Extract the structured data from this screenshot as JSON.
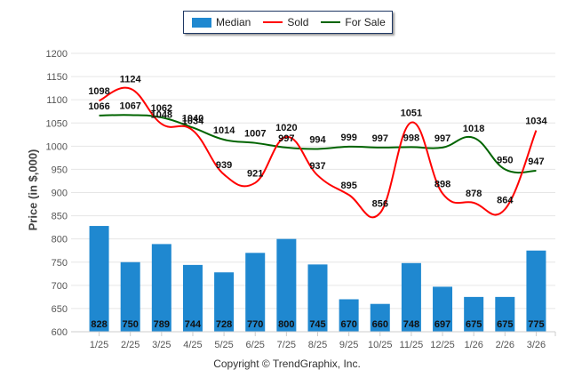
{
  "legend": {
    "median_label": "Median",
    "sold_label": "Sold",
    "forsale_label": "For Sale"
  },
  "copyright": "Copyright © TrendGraphix, Inc.",
  "colors": {
    "median": "#1f88d0",
    "sold": "#ff0000",
    "forsale": "#006400",
    "grid": "#e6e6e6"
  },
  "chart_data": {
    "type": "bar",
    "title": "",
    "xlabel": "",
    "ylabel": "Price (in $,000)",
    "ylim": [
      600,
      1200
    ],
    "yticks": [
      600,
      650,
      700,
      750,
      800,
      850,
      900,
      950,
      1000,
      1050,
      1100,
      1150,
      1200
    ],
    "grid": true,
    "legend_position": "top-center",
    "categories": [
      "1/25",
      "2/25",
      "3/25",
      "4/25",
      "5/25",
      "6/25",
      "7/25",
      "8/25",
      "9/25",
      "10/25",
      "11/25",
      "12/25",
      "1/26",
      "2/26",
      "3/26"
    ],
    "series": [
      {
        "name": "Median",
        "type": "bar",
        "values": [
          828,
          750,
          789,
          744,
          728,
          770,
          800,
          745,
          670,
          660,
          748,
          697,
          675,
          675,
          775
        ]
      },
      {
        "name": "Sold",
        "type": "line",
        "values": [
          1098,
          1124,
          1048,
          1034,
          939,
          921,
          1020,
          937,
          895,
          856,
          1051,
          898,
          878,
          864,
          1034
        ]
      },
      {
        "name": "For Sale",
        "type": "line",
        "values": [
          1066,
          1067,
          1062,
          1040,
          1014,
          1007,
          997,
          994,
          999,
          997,
          998,
          997,
          1018,
          950,
          947
        ]
      }
    ]
  }
}
